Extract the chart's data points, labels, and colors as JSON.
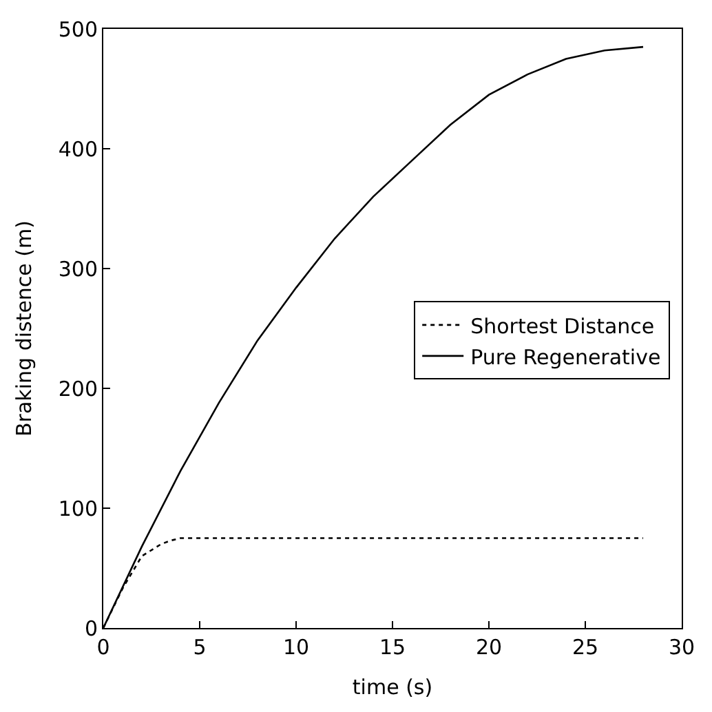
{
  "chart_data": {
    "type": "line",
    "xlabel": "time (s)",
    "ylabel": "Braking distence (m)",
    "xlim": [
      0,
      30
    ],
    "ylim": [
      0,
      500
    ],
    "xticks": [
      0,
      5,
      10,
      15,
      20,
      25,
      30
    ],
    "yticks": [
      0,
      100,
      200,
      300,
      400,
      500
    ],
    "legend": "right",
    "marker": "none",
    "series": [
      {
        "name": "Shortest Distance",
        "color": "#000000",
        "line_style": "dotted",
        "x": [
          0,
          1,
          2,
          3,
          3.5,
          4,
          28
        ],
        "values": [
          0,
          33,
          60,
          70,
          73,
          75,
          75
        ]
      },
      {
        "name": "Pure Regenerative",
        "color": "#000000",
        "line_style": "solid",
        "x": [
          0,
          2,
          4,
          6,
          8,
          10,
          12,
          14,
          16,
          18,
          20,
          22,
          24,
          26,
          28
        ],
        "values": [
          0,
          68,
          131,
          188,
          240,
          284,
          325,
          360,
          390,
          420,
          445,
          462,
          475,
          482,
          485
        ]
      }
    ]
  }
}
